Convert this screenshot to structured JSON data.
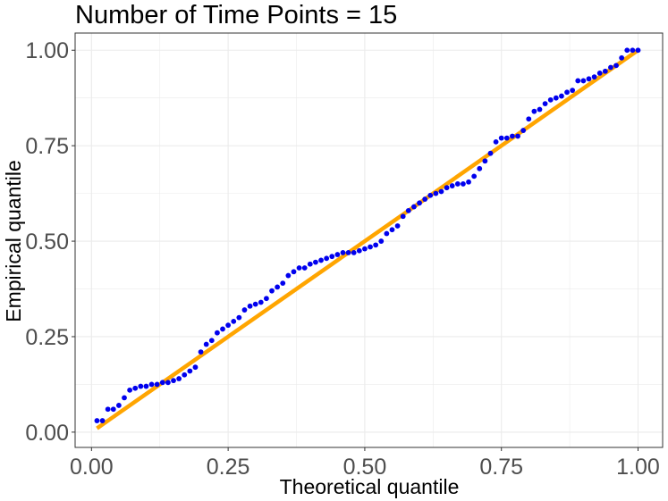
{
  "chart_data": {
    "type": "scatter",
    "title": "Number of Time Points = 15",
    "xlabel": "Theoretical quantile",
    "ylabel": "Empirical quantile",
    "xlim": [
      -0.03,
      1.045
    ],
    "ylim": [
      -0.04,
      1.045
    ],
    "x_ticks": [
      0.0,
      0.25,
      0.5,
      0.75,
      1.0
    ],
    "y_ticks": [
      0.0,
      0.25,
      0.5,
      0.75,
      1.0
    ],
    "x_tick_labels": [
      "0.00",
      "0.25",
      "0.50",
      "0.75",
      "1.00"
    ],
    "y_tick_labels": [
      "0.00",
      "0.25",
      "0.50",
      "0.75",
      "1.00"
    ],
    "grid": true,
    "legend": "none",
    "colors": {
      "points": "#0000ee",
      "reference_line": "#ffa500",
      "grid": "#ebebeb",
      "border": "#333333"
    },
    "reference_line": {
      "x": [
        0.01,
        1.0
      ],
      "y": [
        0.01,
        1.0
      ]
    },
    "series": [
      {
        "x": [
          0.01,
          0.02,
          0.03,
          0.04,
          0.05,
          0.06,
          0.07,
          0.08,
          0.09,
          0.1,
          0.11,
          0.12,
          0.13,
          0.14,
          0.15,
          0.16,
          0.17,
          0.18,
          0.19,
          0.2,
          0.21,
          0.22,
          0.23,
          0.24,
          0.25,
          0.26,
          0.27,
          0.28,
          0.29,
          0.3,
          0.31,
          0.32,
          0.33,
          0.34,
          0.35,
          0.36,
          0.37,
          0.38,
          0.39,
          0.4,
          0.41,
          0.42,
          0.43,
          0.44,
          0.45,
          0.46,
          0.47,
          0.48,
          0.49,
          0.5,
          0.51,
          0.52,
          0.53,
          0.54,
          0.55,
          0.56,
          0.57,
          0.58,
          0.59,
          0.6,
          0.61,
          0.62,
          0.63,
          0.64,
          0.65,
          0.66,
          0.67,
          0.68,
          0.69,
          0.7,
          0.71,
          0.72,
          0.73,
          0.74,
          0.75,
          0.76,
          0.77,
          0.78,
          0.79,
          0.8,
          0.81,
          0.82,
          0.83,
          0.84,
          0.85,
          0.86,
          0.87,
          0.88,
          0.89,
          0.9,
          0.91,
          0.92,
          0.93,
          0.94,
          0.95,
          0.96,
          0.97,
          0.98,
          0.99,
          1.0
        ],
        "y": [
          0.03,
          0.03,
          0.06,
          0.06,
          0.07,
          0.09,
          0.11,
          0.115,
          0.12,
          0.12,
          0.125,
          0.125,
          0.13,
          0.13,
          0.135,
          0.14,
          0.15,
          0.16,
          0.17,
          0.21,
          0.23,
          0.24,
          0.26,
          0.27,
          0.28,
          0.29,
          0.3,
          0.32,
          0.33,
          0.335,
          0.34,
          0.35,
          0.37,
          0.38,
          0.39,
          0.41,
          0.42,
          0.43,
          0.43,
          0.44,
          0.445,
          0.45,
          0.455,
          0.46,
          0.465,
          0.47,
          0.47,
          0.47,
          0.475,
          0.48,
          0.485,
          0.49,
          0.5,
          0.52,
          0.53,
          0.54,
          0.565,
          0.58,
          0.59,
          0.6,
          0.61,
          0.62,
          0.625,
          0.63,
          0.64,
          0.645,
          0.65,
          0.65,
          0.655,
          0.67,
          0.69,
          0.71,
          0.73,
          0.76,
          0.77,
          0.77,
          0.775,
          0.775,
          0.79,
          0.82,
          0.84,
          0.845,
          0.86,
          0.87,
          0.875,
          0.88,
          0.89,
          0.895,
          0.92,
          0.92,
          0.925,
          0.93,
          0.94,
          0.945,
          0.955,
          0.96,
          0.98,
          1.0,
          1.0,
          1.0
        ]
      }
    ]
  }
}
